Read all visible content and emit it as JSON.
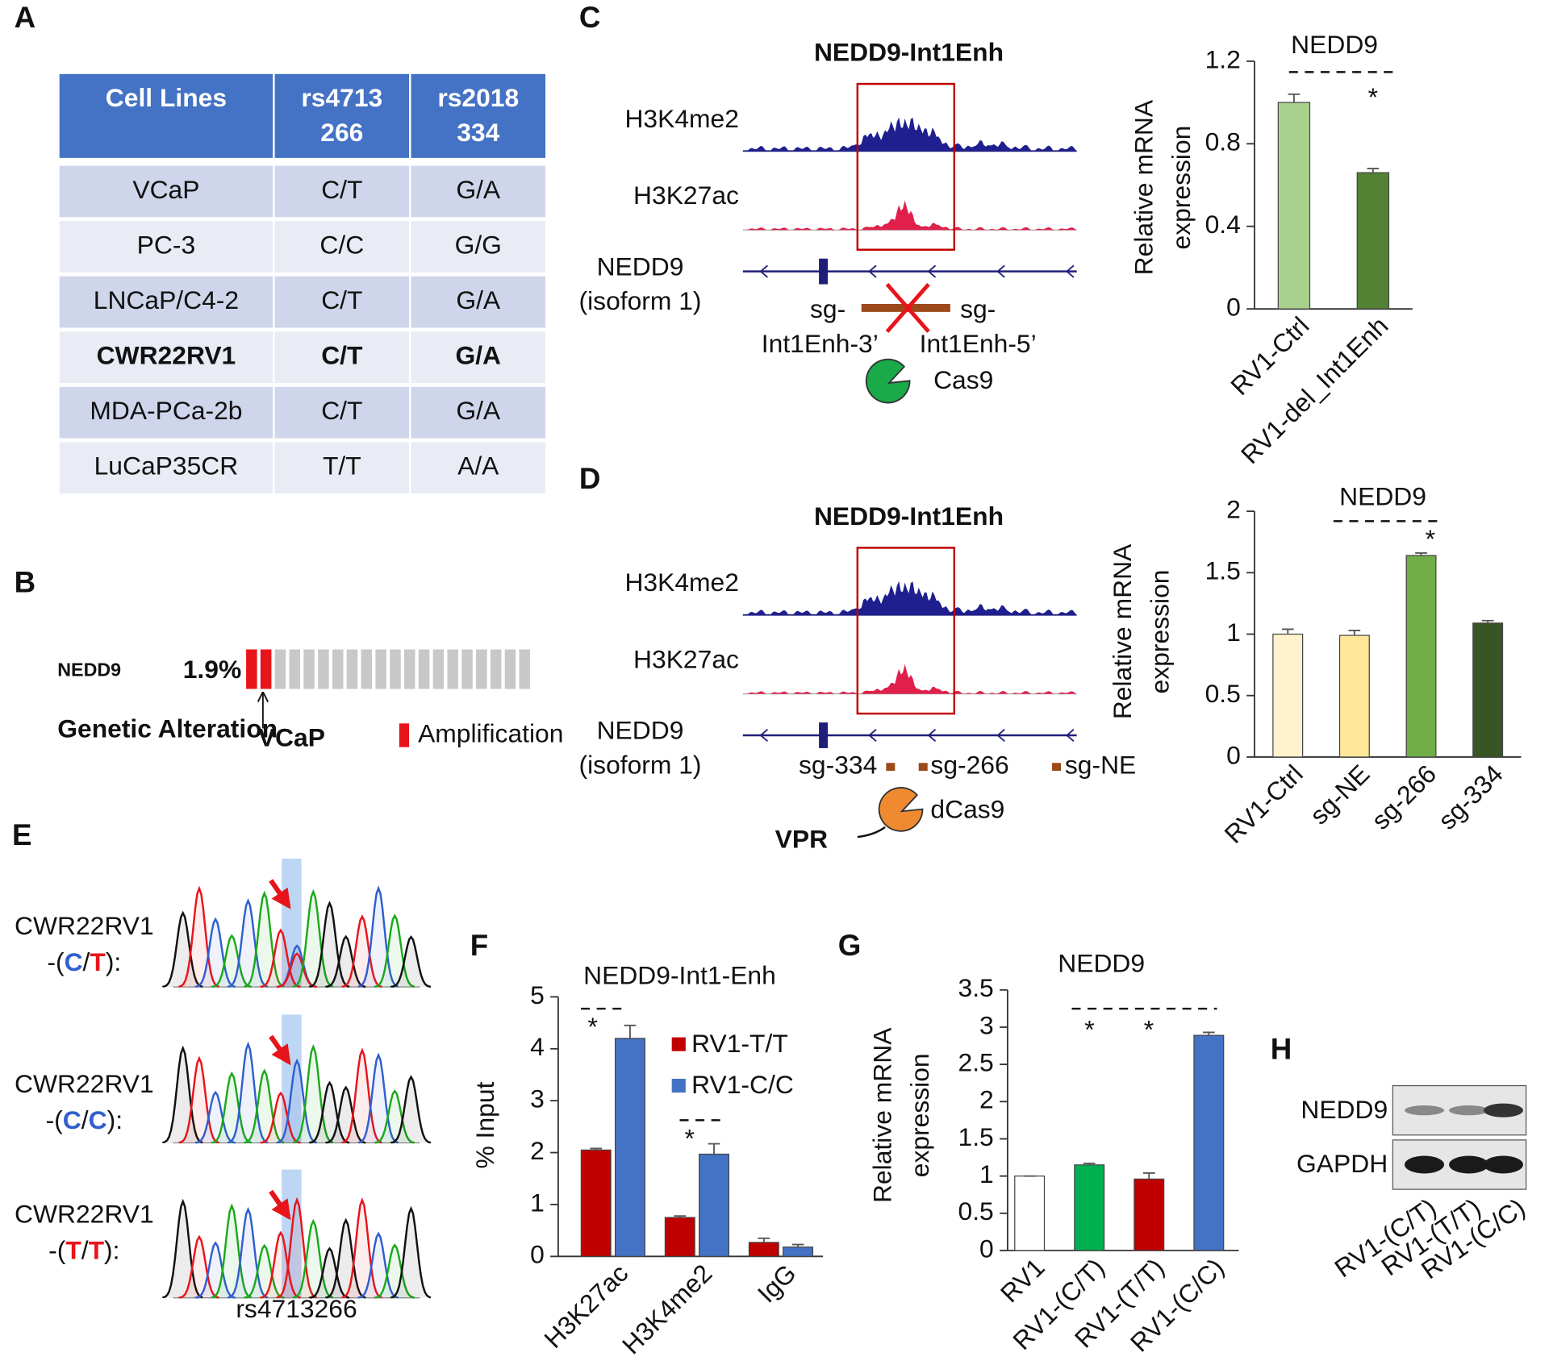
{
  "figure": {
    "panel_labels": [
      "A",
      "B",
      "C",
      "D",
      "E",
      "F",
      "G",
      "H"
    ]
  },
  "table": {
    "header": [
      [
        "Cell Lines"
      ],
      [
        "rs4713",
        "266"
      ],
      [
        "rs2018",
        "334"
      ]
    ],
    "rows": [
      [
        "VCaP",
        "C/T",
        "G/A"
      ],
      [
        "PC-3",
        "C/C",
        "G/G"
      ],
      [
        "LNCaP/C4-2",
        "C/T",
        "G/A"
      ],
      [
        "CWR22RV1",
        "C/T",
        "G/A"
      ],
      [
        "MDA-PCa-2b",
        "C/T",
        "G/A"
      ],
      [
        "LuCaP35CR",
        "T/T",
        "A/A"
      ]
    ],
    "bold_row": 3
  },
  "oncoprint": {
    "gene": "NEDD9",
    "percent": "1.9%",
    "row_label": "Genetic Alteration",
    "arrow_label": "VCaP",
    "legend": "Amplification",
    "cells": 20,
    "altered": 2,
    "altered_color": "#e8141b",
    "unaltered_color": "#c8c8c8"
  },
  "tracks_c": {
    "title": "NEDD9-Int1Enh",
    "tracks": [
      "H3K4me2",
      "H3K27ac"
    ],
    "gene": [
      "NEDD9",
      "(isoform 1)"
    ],
    "guides": [
      [
        "sg-",
        "Int1Enh-3’"
      ],
      [
        "sg-",
        "Int1Enh-5’"
      ]
    ],
    "enzyme": "Cas9"
  },
  "tracks_d": {
    "title": "NEDD9-Int1Enh",
    "tracks": [
      "H3K4me2",
      "H3K27ac"
    ],
    "gene": [
      "NEDD9",
      "(isoform 1)"
    ],
    "guides": [
      "sg-334",
      "sg-266",
      "sg-NE"
    ],
    "enzyme": "dCas9",
    "activator": "VPR"
  },
  "chromatograms": {
    "samples": [
      {
        "name": "CWR22RV1",
        "genotype": [
          "-(",
          "C",
          "/",
          "T",
          "):"
        ]
      },
      {
        "name": "CWR22RV1",
        "genotype": [
          "-(",
          "C",
          "/",
          "C",
          "):"
        ]
      },
      {
        "name": "CWR22RV1",
        "genotype": [
          "-(",
          "T",
          "/",
          "T",
          "):"
        ]
      }
    ],
    "caption": "rs4713266"
  },
  "blot": {
    "rows": [
      "NEDD9",
      "GAPDH"
    ],
    "lanes": [
      "RV1-(C/T)",
      "RV1-(T/T)",
      "RV1-(C/C)"
    ]
  },
  "chart_data": [
    {
      "type": "bar",
      "title": "NEDD9",
      "ylabel": [
        "Relative mRNA",
        "expression"
      ],
      "categories": [
        "RV1-Ctrl",
        "RV1-del_Int1Enh"
      ],
      "values": [
        1.0,
        0.66
      ],
      "errors": [
        0.04,
        0.02
      ],
      "colors": [
        "#a9d18e",
        "#548235"
      ],
      "ylim": [
        0,
        1.2
      ],
      "yticks": [
        0,
        0.4,
        0.8,
        1.2
      ],
      "annotations": [
        "*"
      ]
    },
    {
      "type": "bar",
      "title": "NEDD9",
      "ylabel": [
        "Relative mRNA",
        "expression"
      ],
      "categories": [
        "RV1-Ctrl",
        "sg-NE",
        "sg-266",
        "sg-334"
      ],
      "values": [
        1.0,
        0.99,
        1.64,
        1.09
      ],
      "errors": [
        0.04,
        0.04,
        0.02,
        0.02
      ],
      "colors": [
        "#fff2cc",
        "#ffe699",
        "#70ad47",
        "#375623"
      ],
      "ylim": [
        0,
        2
      ],
      "yticks": [
        0,
        0.5,
        1,
        1.5,
        2
      ],
      "annotations": [
        "*"
      ]
    },
    {
      "type": "bar",
      "title": "NEDD9-Int1-Enh",
      "ylabel": [
        "% Input"
      ],
      "categories": [
        "H3K27ac",
        "H3K4me2",
        "IgG"
      ],
      "series": [
        {
          "name": "RV1-T/T",
          "color": "#c00000",
          "values": [
            2.05,
            0.75,
            0.27
          ],
          "errors": [
            0.03,
            0.03,
            0.08
          ]
        },
        {
          "name": "RV1-C/C",
          "color": "#4472c4",
          "values": [
            4.2,
            1.97,
            0.18
          ],
          "errors": [
            0.25,
            0.2,
            0.05
          ]
        }
      ],
      "ylim": [
        0,
        5
      ],
      "yticks": [
        0,
        1,
        2,
        3,
        4,
        5
      ],
      "annotations": [
        "*",
        "*"
      ]
    },
    {
      "type": "bar",
      "title": "NEDD9",
      "ylabel": [
        "Relative mRNA",
        "expression"
      ],
      "categories": [
        "RV1",
        "RV1-(C/T)",
        "RV1-(T/T)",
        "RV1-(C/C)"
      ],
      "values": [
        1.0,
        1.15,
        0.96,
        2.89
      ],
      "errors": [
        0,
        0.02,
        0.08,
        0.04
      ],
      "colors": [
        "#ffffff",
        "#00b050",
        "#c00000",
        "#4472c4"
      ],
      "ylim": [
        0,
        3.5
      ],
      "yticks": [
        0,
        0.5,
        1,
        1.5,
        2,
        2.5,
        3,
        3.5
      ],
      "annotations": [
        "*",
        "*"
      ]
    }
  ]
}
